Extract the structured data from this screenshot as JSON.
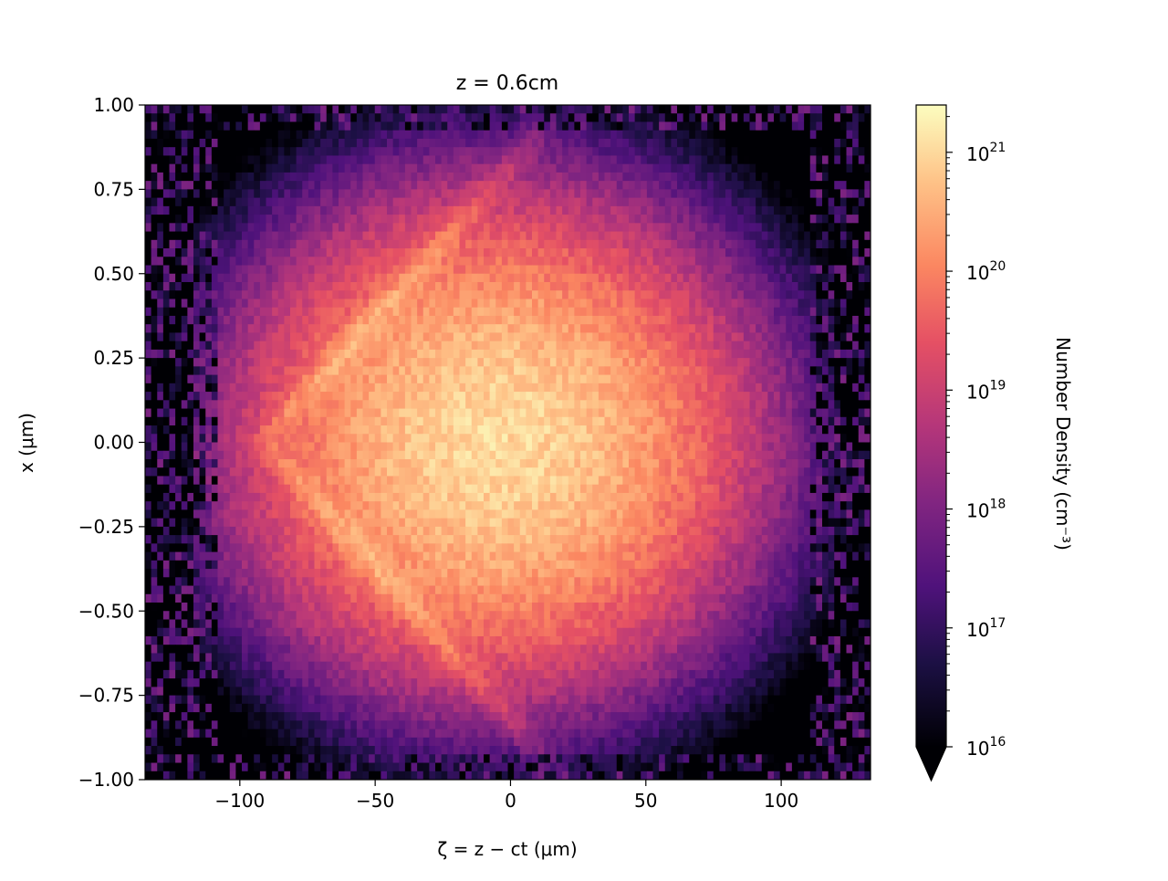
{
  "chart_data": {
    "type": "heatmap",
    "title": "z = 0.6cm",
    "xlabel": "ζ = z − ct (μm)",
    "ylabel": "x (μm)",
    "xlim": [
      -135,
      133
    ],
    "ylim": [
      -1.0,
      1.0
    ],
    "xticks": [
      -100,
      -50,
      0,
      50,
      100
    ],
    "xtick_labels": [
      "−100",
      "−50",
      "0",
      "50",
      "100"
    ],
    "yticks": [
      1.0,
      0.75,
      0.5,
      0.25,
      0.0,
      -0.25,
      -0.5,
      -0.75,
      -1.0
    ],
    "ytick_labels": [
      "1.00",
      "0.75",
      "0.50",
      "0.25",
      "0.00",
      "−0.25",
      "−0.50",
      "−0.75",
      "−1.00"
    ],
    "colormap": "magma",
    "colorbar": {
      "label": "Number Density (cm⁻³)",
      "scale": "log",
      "range": [
        1e+16,
        2.5e+21
      ],
      "extend": "min",
      "ticks": [
        1e+16,
        1e+17,
        1e+18,
        1e+19,
        1e+20,
        1e+21
      ],
      "tick_labels": [
        {
          "base": "10",
          "exp": "16"
        },
        {
          "base": "10",
          "exp": "17"
        },
        {
          "base": "10",
          "exp": "18"
        },
        {
          "base": "10",
          "exp": "19"
        },
        {
          "base": "10",
          "exp": "20"
        },
        {
          "base": "10",
          "exp": "21"
        }
      ]
    },
    "density_model": {
      "peak_log10": 21.0,
      "peak_zeta": 0,
      "peak_x": 0.0,
      "zeta_extent": [
        -118,
        120
      ],
      "x_extent": [
        -1.0,
        1.0
      ],
      "noise_floor_log10": 16.0
    }
  }
}
